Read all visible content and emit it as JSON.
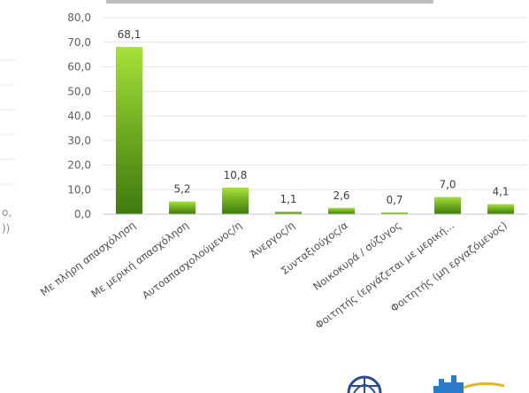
{
  "chart_data": {
    "type": "bar",
    "categories": [
      "Με πλήρη απασχόληση",
      "Με μερική απασχόληση",
      "Αυτοαπασχολούμενος/η",
      "Άνεργος/η",
      "Συνταξιούχος/α",
      "Νοικοκυρά / σύζυγος",
      "Φοιτητής (εργάζεται με μερική...",
      "Φοιτητής (μη εργαζόμενος)"
    ],
    "values": [
      68.1,
      5.2,
      10.8,
      1.1,
      2.6,
      0.7,
      7.0,
      4.1
    ],
    "value_labels": [
      "68,1",
      "5,2",
      "10,8",
      "1,1",
      "2,6",
      "0,7",
      "7,0",
      "4,1"
    ],
    "yticks": [
      "0,0",
      "10,0",
      "20,0",
      "30,0",
      "40,0",
      "50,0",
      "60,0",
      "70,0",
      "80,0"
    ],
    "ylim": [
      0,
      80
    ],
    "grid": true,
    "colors": {
      "bar_top": "#a6e23a",
      "bar_bottom": "#3e7a10",
      "grid": "#e6e6e6",
      "axis": "#c8c8c8"
    }
  },
  "left_partial_text": [
    "ο,",
    "))"
  ]
}
